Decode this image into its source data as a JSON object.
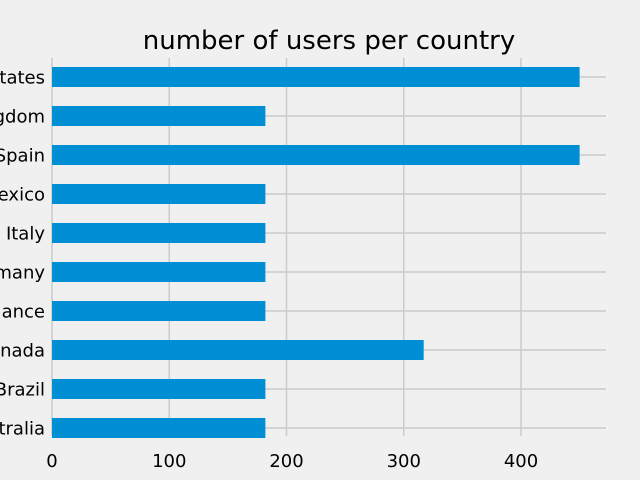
{
  "chart_data": {
    "type": "bar",
    "orientation": "horizontal",
    "title": "number of users per country",
    "xlabel": "",
    "ylabel": "",
    "categories": [
      "United States",
      "United Kingdom",
      "Spain",
      "Mexico",
      "Italy",
      "Germany",
      "France",
      "Canada",
      "Brazil",
      "Australia"
    ],
    "visible_labels": [
      "tates",
      "gdom",
      "Spain",
      "exico",
      "Italy",
      "many",
      "ance",
      "nada",
      "Brazil",
      "tralia"
    ],
    "values": [
      450,
      182,
      450,
      182,
      182,
      182,
      182,
      317,
      182,
      182
    ],
    "xlim": [
      0,
      475
    ],
    "xticks": [
      "0",
      "100",
      "200",
      "300",
      "400"
    ],
    "grid": true,
    "bar_color": "#008fd5",
    "background": "#f0f0f0"
  }
}
